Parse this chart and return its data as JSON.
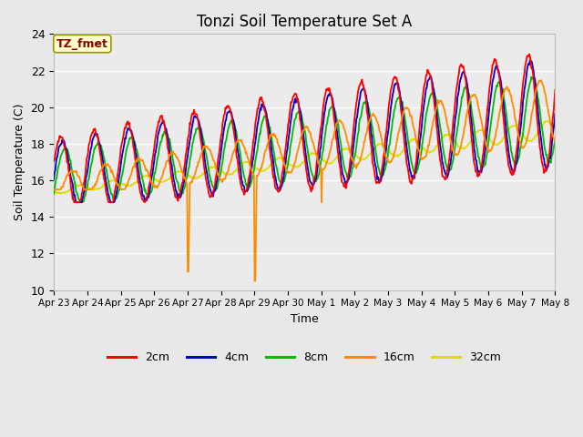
{
  "title": "Tonzi Soil Temperature Set A",
  "xlabel": "Time",
  "ylabel": "Soil Temperature (C)",
  "ylim": [
    10,
    24
  ],
  "n_days": 15,
  "annotation": "TZ_fmet",
  "annotation_color": "#8B0000",
  "annotation_bg": "#FFFFCC",
  "annotation_edge": "#999900",
  "line_colors": {
    "2cm": "#FF0000",
    "4cm": "#0000CC",
    "8cm": "#00BB00",
    "16cm": "#FF8C00",
    "32cm": "#DDDD00"
  },
  "line_width": 1.3,
  "bg_color": "#E8E8E8",
  "plot_bg_color": "#EBEBEB",
  "grid_color": "#FFFFFF",
  "yticks": [
    10,
    12,
    14,
    16,
    18,
    20,
    22,
    24
  ],
  "xtick_labels": [
    "Apr 23",
    "Apr 24",
    "Apr 25",
    "Apr 26",
    "Apr 27",
    "Apr 28",
    "Apr 29",
    "Apr 30",
    "May 1",
    "May 2",
    "May 3",
    "May 4",
    "May 5",
    "May 6",
    "May 7",
    "May 8"
  ],
  "figsize": [
    6.4,
    4.8
  ],
  "dpi": 100
}
